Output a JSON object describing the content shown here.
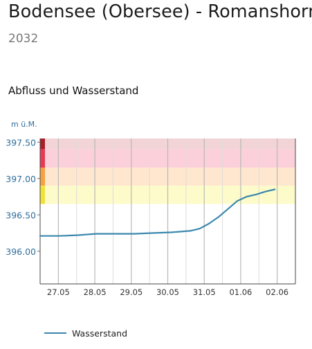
{
  "header": {
    "title": "Bodensee (Obersee) - Romanshorn",
    "station_id": "2032"
  },
  "section": {
    "title": "Abfluss und Wasserstand"
  },
  "colors": {
    "line": "#3a87ad",
    "band_level4": "#f2d4d6",
    "band_level3": "#fcd0da",
    "band_level2": "#ffe7cf",
    "band_level1": "#fdfbc9",
    "marker_level4": "#a8202a",
    "marker_level3": "#e83a52",
    "marker_level2": "#f5a142",
    "marker_level1": "#f1e23a",
    "axis_text": "#2d6e9b"
  },
  "chart_data": {
    "type": "line",
    "ylabel": "m ü.M.",
    "y_ticks": [
      "397.50",
      "397.00",
      "396.50",
      "396.00"
    ],
    "y_tick_values": [
      397.5,
      397.0,
      396.5,
      396.0
    ],
    "ylim": [
      395.55,
      397.55
    ],
    "x_ticks": [
      "27.05",
      "28.05",
      "29.05",
      "30.05",
      "31.05",
      "01.06",
      "02.06"
    ],
    "x_range_days": [
      0,
      6.8
    ],
    "danger_bands": [
      {
        "from": 397.4,
        "to": 397.55,
        "level": 4
      },
      {
        "from": 397.15,
        "to": 397.4,
        "level": 3
      },
      {
        "from": 396.9,
        "to": 397.15,
        "level": 2
      },
      {
        "from": 396.65,
        "to": 396.9,
        "level": 1
      }
    ],
    "series": [
      {
        "name": "Wasserstand",
        "x": [
          0.0,
          0.5,
          1.0,
          1.5,
          2.0,
          2.5,
          3.0,
          3.5,
          4.0,
          4.25,
          4.5,
          4.75,
          5.0,
          5.25,
          5.5,
          5.75,
          6.0,
          6.25
        ],
        "values": [
          396.21,
          396.21,
          396.22,
          396.24,
          396.24,
          396.24,
          396.25,
          396.26,
          396.28,
          396.31,
          396.38,
          396.47,
          396.58,
          396.69,
          396.75,
          396.78,
          396.82,
          396.85
        ]
      }
    ]
  },
  "legend": {
    "items": [
      {
        "label": "Wasserstand"
      }
    ]
  }
}
